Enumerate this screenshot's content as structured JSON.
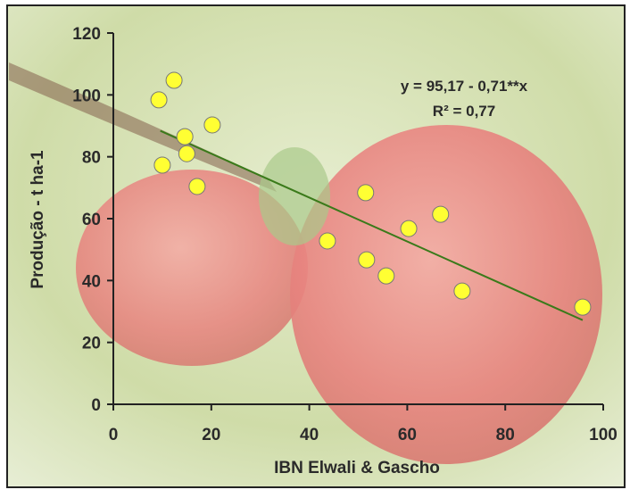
{
  "chart_data": {
    "type": "scatter",
    "x_label": "IBN Elwali & Gascho",
    "y_label": "Produção - t ha-1",
    "annotations": [
      "y = 95,17 - 0,71**x",
      "R² = 0,77"
    ],
    "x": [
      9.3,
      12.4,
      14.6,
      15.0,
      10.0,
      17.1,
      20.2,
      43.7,
      51.5,
      51.7,
      55.7,
      60.3,
      66.8,
      71.2,
      95.8
    ],
    "values": [
      98.4,
      104.7,
      86.5,
      81.0,
      77.3,
      70.4,
      90.3,
      52.8,
      68.4,
      46.7,
      41.5,
      56.8,
      61.4,
      36.6,
      31.4
    ],
    "color": "#ffff33",
    "trendline": {
      "x": [
        9.6,
        95.8
      ],
      "y": [
        88.4,
        27.2
      ],
      "color": "#3a7a1a"
    },
    "xlim": [
      0,
      100
    ],
    "xticks": [
      0,
      20,
      40,
      60,
      80,
      100
    ],
    "ylim": [
      0,
      120
    ],
    "yticks": [
      0,
      20,
      40,
      60,
      80,
      100,
      120
    ]
  }
}
